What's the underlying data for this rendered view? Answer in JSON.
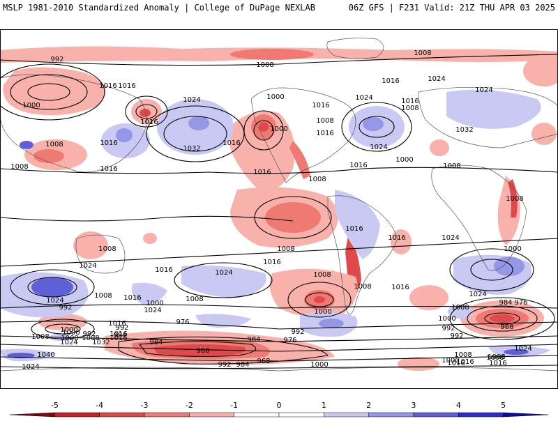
{
  "header": {
    "title_left": "MSLP 1981-2010 Standardized Anomaly | College of DuPage NEXLAB",
    "title_right": "06Z GFS | F231 Valid: 21Z THU APR 03 2025"
  },
  "isobar_labels": [
    "992",
    "1008",
    "1016",
    "1000",
    "1008",
    "1016",
    "1024",
    "1032",
    "1016",
    "1008",
    "1000",
    "1016",
    "1024",
    "1008",
    "1016",
    "1008",
    "1016",
    "1024",
    "1016",
    "1008",
    "1024",
    "1032",
    "1008",
    "1000",
    "1016",
    "1016",
    "1024",
    "1000",
    "1016",
    "1008",
    "1008",
    "1016",
    "1024",
    "1016",
    "1016",
    "1024",
    "1008",
    "1016",
    "1008",
    "1016",
    "1008",
    "1016",
    "1024",
    "1008",
    "1016",
    "1000",
    "1024",
    "1008",
    "1000",
    "1024",
    "992",
    "1008",
    "1000",
    "1016",
    "1000",
    "1008",
    "1024",
    "1016",
    "992",
    "1000",
    "992",
    "984",
    "976",
    "992",
    "1032",
    "1016",
    "984",
    "968",
    "992",
    "984",
    "968",
    "1000",
    "984",
    "976",
    "992",
    "1008",
    "1000",
    "1040",
    "1024",
    "1000",
    "1008",
    "1016",
    "1024",
    "1008",
    "1016",
    "984",
    "976",
    "968",
    "992",
    "1008",
    "1016",
    "1000",
    "1024",
    "1016",
    "1008"
  ],
  "colorbar": {
    "ticks": [
      "-5",
      "-4",
      "-3",
      "-2",
      "-1",
      "0",
      "1",
      "2",
      "3",
      "4",
      "5"
    ],
    "colors": [
      "#7a0a10",
      "#c8202a",
      "#e0494b",
      "#ef7a74",
      "#f9b1ab",
      "#ffffff",
      "#ffffff",
      "#c9c9f3",
      "#9696e6",
      "#5f5fd8",
      "#2d2dcc",
      "#0b0ba8"
    ]
  }
}
